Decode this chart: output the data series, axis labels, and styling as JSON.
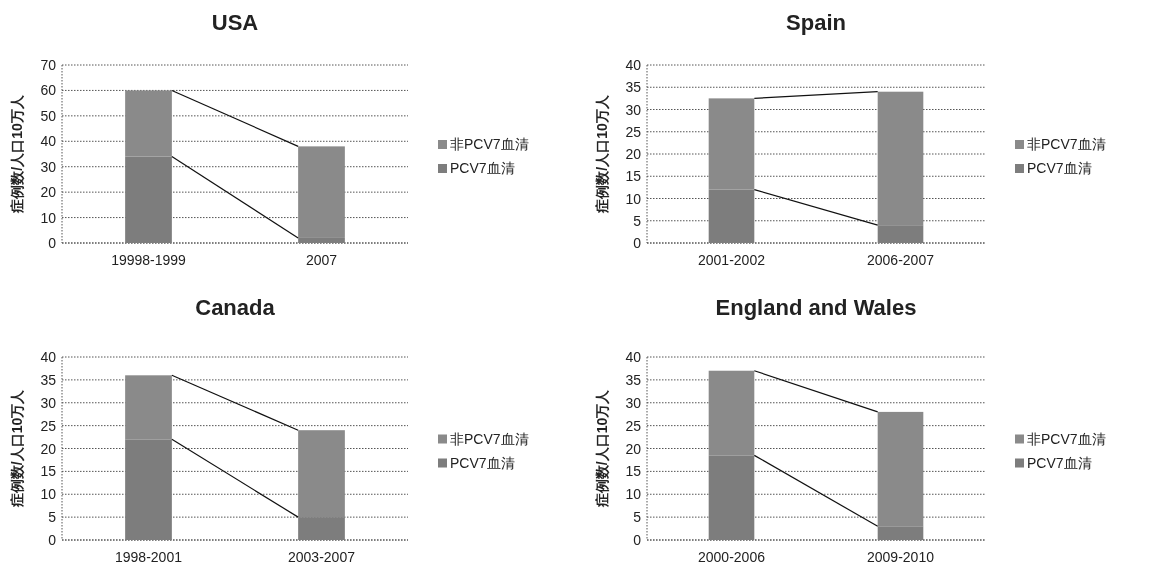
{
  "chart_data": [
    {
      "type": "bar",
      "title": "USA",
      "ylabel": "症例数/人口10万人",
      "categories": [
        "19998-1999",
        "2007"
      ],
      "stacked": true,
      "ylim": [
        0,
        70
      ],
      "yticks": [
        0,
        10,
        20,
        30,
        40,
        50,
        60,
        70
      ],
      "grid": "y",
      "legend": "right",
      "series": [
        {
          "name": "PCV7血清",
          "color": "#7d7d7d",
          "values": [
            34,
            2
          ]
        },
        {
          "name": "非PCV7血清",
          "color": "#8a8a8a",
          "values": [
            26,
            36
          ]
        }
      ]
    },
    {
      "type": "bar",
      "title": "Spain",
      "ylabel": "症例数/人口10万人",
      "categories": [
        "2001-2002",
        "2006-2007"
      ],
      "stacked": true,
      "ylim": [
        0,
        40
      ],
      "yticks": [
        0,
        5,
        10,
        15,
        20,
        25,
        30,
        35,
        40
      ],
      "grid": "y",
      "legend": "right",
      "series": [
        {
          "name": "PCV7血清",
          "color": "#7d7d7d",
          "values": [
            12,
            4
          ]
        },
        {
          "name": "非PCV7血清",
          "color": "#8a8a8a",
          "values": [
            20.5,
            30
          ]
        }
      ]
    },
    {
      "type": "bar",
      "title": "Canada",
      "ylabel": "症例数/人口10万人",
      "categories": [
        "1998-2001",
        "2003-2007"
      ],
      "stacked": true,
      "ylim": [
        0,
        40
      ],
      "yticks": [
        0,
        5,
        10,
        15,
        20,
        25,
        30,
        35,
        40
      ],
      "grid": "y",
      "legend": "right",
      "series": [
        {
          "name": "PCV7血清",
          "color": "#7d7d7d",
          "values": [
            22,
            5
          ]
        },
        {
          "name": "非PCV7血清",
          "color": "#8a8a8a",
          "values": [
            14,
            19
          ]
        }
      ]
    },
    {
      "type": "bar",
      "title": "England and Wales",
      "ylabel": "症例数/人口10万人",
      "categories": [
        "2000-2006",
        "2009-2010"
      ],
      "stacked": true,
      "ylim": [
        0,
        40
      ],
      "yticks": [
        0,
        5,
        10,
        15,
        20,
        25,
        30,
        35,
        40
      ],
      "grid": "y",
      "legend": "right",
      "series": [
        {
          "name": "PCV7血清",
          "color": "#7d7d7d",
          "values": [
            18.5,
            3
          ]
        },
        {
          "name": "非PCV7血清",
          "color": "#8a8a8a",
          "values": [
            18.5,
            25
          ]
        }
      ]
    }
  ]
}
